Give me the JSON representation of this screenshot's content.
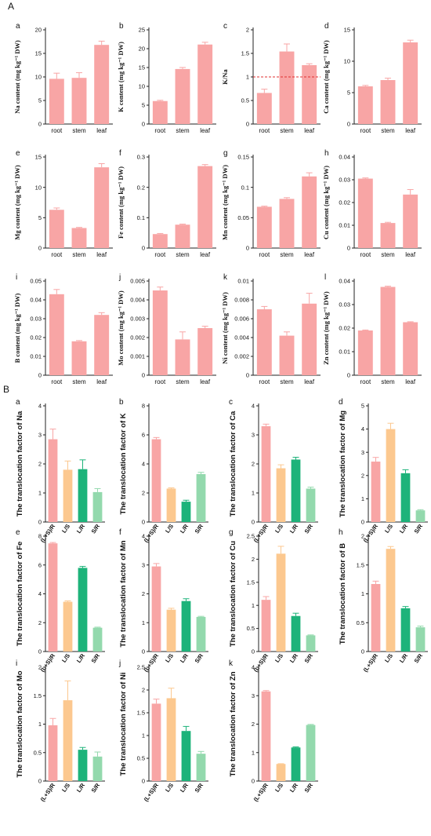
{
  "sections": {
    "a": "A",
    "b": "B"
  },
  "colors": {
    "panel_a_bar": "#f8a5a5",
    "panel_b_bars": [
      "#f8a5a5",
      "#fcc88f",
      "#1db37a",
      "#93d9ad"
    ],
    "ref_line": "#e03030"
  },
  "chart_data": [
    {
      "section": "A",
      "letter": "a",
      "type": "bar",
      "ylabel": "Na content (mg kg⁻¹ DW)",
      "categories": [
        "root",
        "stem",
        "leaf"
      ],
      "values": [
        9.6,
        9.8,
        16.8
      ],
      "errors": [
        1.2,
        1.1,
        0.8
      ],
      "ylim": [
        0,
        20
      ],
      "yticks": [
        0,
        5,
        10,
        15,
        20
      ]
    },
    {
      "section": "A",
      "letter": "b",
      "type": "bar",
      "ylabel": "K content (mg kg⁻¹ DW)",
      "categories": [
        "root",
        "stem",
        "leaf"
      ],
      "values": [
        6.1,
        14.6,
        21.1
      ],
      "errors": [
        0.2,
        0.4,
        0.6
      ],
      "ylim": [
        0,
        25
      ],
      "yticks": [
        0,
        5,
        10,
        15,
        20,
        25
      ]
    },
    {
      "section": "A",
      "letter": "c",
      "type": "bar",
      "ylabel": "K/Na",
      "categories": [
        "root",
        "stem",
        "leaf"
      ],
      "values": [
        0.66,
        1.54,
        1.25
      ],
      "errors": [
        0.08,
        0.16,
        0.03
      ],
      "ylim": [
        0,
        2.0
      ],
      "yticks": [
        0,
        0.5,
        1.0,
        1.5,
        2.0
      ],
      "reference_line": 1.0
    },
    {
      "section": "A",
      "letter": "d",
      "type": "bar",
      "ylabel": "Ca content (mg kg⁻¹ DW)",
      "categories": [
        "root",
        "stem",
        "leaf"
      ],
      "values": [
        6.0,
        7.0,
        13.0
      ],
      "errors": [
        0.15,
        0.3,
        0.35
      ],
      "ylim": [
        0,
        15
      ],
      "yticks": [
        0,
        5,
        10,
        15
      ]
    },
    {
      "section": "A",
      "letter": "e",
      "type": "bar",
      "ylabel": "Mg content (mg kg⁻¹ DW)",
      "categories": [
        "root",
        "stem",
        "leaf"
      ],
      "values": [
        6.3,
        3.3,
        13.3
      ],
      "errors": [
        0.3,
        0.1,
        0.6
      ],
      "ylim": [
        0,
        15
      ],
      "yticks": [
        0,
        5,
        10,
        15
      ]
    },
    {
      "section": "A",
      "letter": "f",
      "type": "bar",
      "ylabel": "Fe content (mg kg⁻¹ DW)",
      "categories": [
        "root",
        "stem",
        "leaf"
      ],
      "values": [
        0.046,
        0.077,
        0.27
      ],
      "errors": [
        0.002,
        0.002,
        0.005
      ],
      "ylim": [
        0,
        0.3
      ],
      "yticks": [
        0,
        0.1,
        0.2,
        0.3
      ]
    },
    {
      "section": "A",
      "letter": "g",
      "type": "bar",
      "ylabel": "Mn content (mg kg⁻¹ DW)",
      "categories": [
        "root",
        "stem",
        "leaf"
      ],
      "values": [
        0.068,
        0.081,
        0.118
      ],
      "errors": [
        0.001,
        0.002,
        0.006
      ],
      "ylim": [
        0,
        0.15
      ],
      "yticks": [
        0,
        0.05,
        0.1,
        0.15
      ]
    },
    {
      "section": "A",
      "letter": "h",
      "type": "bar",
      "ylabel": "Cu content (mg kg⁻¹ DW)",
      "categories": [
        "root",
        "stem",
        "leaf"
      ],
      "values": [
        0.0305,
        0.011,
        0.0235
      ],
      "errors": [
        0.0003,
        0.0003,
        0.0022
      ],
      "ylim": [
        0,
        0.04
      ],
      "yticks": [
        0,
        0.01,
        0.02,
        0.03,
        0.04
      ]
    },
    {
      "section": "A",
      "letter": "i",
      "type": "bar",
      "ylabel": "B content (mg kg⁻¹ DW)",
      "categories": [
        "root",
        "stem",
        "leaf"
      ],
      "values": [
        0.043,
        0.018,
        0.032
      ],
      "errors": [
        0.0025,
        0.0004,
        0.0012
      ],
      "ylim": [
        0,
        0.05
      ],
      "yticks": [
        0,
        0.01,
        0.02,
        0.03,
        0.04,
        0.05
      ]
    },
    {
      "section": "A",
      "letter": "j",
      "type": "bar",
      "ylabel": "Mo content (mg kg⁻¹ DW)",
      "categories": [
        "root",
        "stem",
        "leaf"
      ],
      "values": [
        0.0045,
        0.0019,
        0.0025
      ],
      "errors": [
        0.00018,
        0.0004,
        0.0001
      ],
      "ylim": [
        0,
        0.005
      ],
      "yticks": [
        0,
        0.001,
        0.002,
        0.003,
        0.004,
        0.005
      ]
    },
    {
      "section": "A",
      "letter": "k",
      "type": "bar",
      "ylabel": "Ni content (mg kg⁻¹ DW)",
      "categories": [
        "root",
        "stem",
        "leaf"
      ],
      "values": [
        0.007,
        0.0042,
        0.0076
      ],
      "errors": [
        0.0003,
        0.0004,
        0.0011
      ],
      "ylim": [
        0,
        0.01
      ],
      "yticks": [
        0,
        0.002,
        0.004,
        0.006,
        0.008,
        0.01
      ]
    },
    {
      "section": "A",
      "letter": "l",
      "type": "bar",
      "ylabel": "Zn content (mg kg⁻¹ DW)",
      "categories": [
        "root",
        "stem",
        "leaf"
      ],
      "values": [
        0.019,
        0.0375,
        0.0225
      ],
      "errors": [
        0.0002,
        0.0003,
        0.0002
      ],
      "ylim": [
        0,
        0.04
      ],
      "yticks": [
        0,
        0.01,
        0.02,
        0.03,
        0.04
      ]
    },
    {
      "section": "B",
      "letter": "a",
      "type": "bar",
      "ylabel": "The translocation factor of Na",
      "categories": [
        "(L+S)/R",
        "L/S",
        "L/R",
        "S/R"
      ],
      "values": [
        2.85,
        1.8,
        1.82,
        1.03
      ],
      "errors": [
        0.35,
        0.3,
        0.32,
        0.12
      ],
      "ylim": [
        0,
        4
      ],
      "yticks": [
        0,
        1,
        2,
        3,
        4
      ]
    },
    {
      "section": "B",
      "letter": "b",
      "type": "bar",
      "ylabel": "The translocation factor of K",
      "categories": [
        "(L+S)/R",
        "L/S",
        "L/R",
        "S/R"
      ],
      "values": [
        5.7,
        2.3,
        1.4,
        3.3
      ],
      "errors": [
        0.12,
        0.05,
        0.1,
        0.12
      ],
      "ylim": [
        0,
        8
      ],
      "yticks": [
        0,
        2,
        4,
        6,
        8
      ]
    },
    {
      "section": "B",
      "letter": "c",
      "type": "bar",
      "ylabel": "The translocation factor of Ca",
      "categories": [
        "(L+S)/R",
        "L/S",
        "L/R",
        "S/R"
      ],
      "values": [
        3.3,
        1.85,
        2.15,
        1.15
      ],
      "errors": [
        0.07,
        0.12,
        0.08,
        0.05
      ],
      "ylim": [
        0,
        4
      ],
      "yticks": [
        0,
        1,
        2,
        3,
        4
      ]
    },
    {
      "section": "B",
      "letter": "d",
      "type": "bar",
      "ylabel": "The translocation factor of Mg",
      "categories": [
        "(L+S)/R",
        "L/S",
        "L/R",
        "S/R"
      ],
      "values": [
        2.6,
        4.0,
        2.1,
        0.5
      ],
      "errors": [
        0.18,
        0.25,
        0.15,
        0.03
      ],
      "ylim": [
        0,
        5
      ],
      "yticks": [
        0,
        1,
        2,
        3,
        4,
        5
      ]
    },
    {
      "section": "B",
      "letter": "e",
      "type": "bar",
      "ylabel": "The translocation factor of Fe",
      "categories": [
        "(L+S)/R",
        "L/S",
        "L/R",
        "S/R"
      ],
      "values": [
        7.5,
        3.45,
        5.8,
        1.65
      ],
      "errors": [
        0.06,
        0.06,
        0.1,
        0.04
      ],
      "ylim": [
        0,
        8
      ],
      "yticks": [
        0,
        2,
        4,
        6,
        8
      ]
    },
    {
      "section": "B",
      "letter": "f",
      "type": "bar",
      "ylabel": "The translocation factor of Mn",
      "categories": [
        "(L+S)/R",
        "L/S",
        "L/R",
        "S/R"
      ],
      "values": [
        2.95,
        1.45,
        1.75,
        1.2
      ],
      "errors": [
        0.1,
        0.05,
        0.08,
        0.02
      ],
      "ylim": [
        0,
        4
      ],
      "yticks": [
        0,
        1,
        2,
        3,
        4
      ]
    },
    {
      "section": "B",
      "letter": "g",
      "type": "bar",
      "ylabel": "The translocation factor of Cu",
      "categories": [
        "(L+S)/R",
        "L/S",
        "L/R",
        "S/R"
      ],
      "values": [
        1.12,
        2.12,
        0.77,
        0.35
      ],
      "errors": [
        0.07,
        0.16,
        0.06,
        0.01
      ],
      "ylim": [
        0,
        2.5
      ],
      "yticks": [
        0,
        0.5,
        1.0,
        1.5,
        2.0,
        2.5
      ]
    },
    {
      "section": "B",
      "letter": "h",
      "type": "bar",
      "ylabel": "The translocation factor of B",
      "categories": [
        "(L+S)/R",
        "L/S",
        "L/R",
        "S/R"
      ],
      "values": [
        1.17,
        1.78,
        0.75,
        0.42
      ],
      "errors": [
        0.05,
        0.04,
        0.03,
        0.02
      ],
      "ylim": [
        0,
        2.0
      ],
      "yticks": [
        0,
        0.5,
        1.0,
        1.5,
        2.0
      ]
    },
    {
      "section": "B",
      "letter": "i",
      "type": "bar",
      "ylabel": "The translocation factor of Mo",
      "categories": [
        "(L+S)/R",
        "L/S",
        "L/R",
        "S/R"
      ],
      "values": [
        0.98,
        1.42,
        0.55,
        0.43
      ],
      "errors": [
        0.12,
        0.34,
        0.04,
        0.08
      ],
      "ylim": [
        0,
        2.0
      ],
      "yticks": [
        0,
        0.5,
        1.0,
        1.5,
        2.0
      ]
    },
    {
      "section": "B",
      "letter": "j",
      "type": "bar",
      "ylabel": "The translocation factor of Ni",
      "categories": [
        "(L+S)/R",
        "L/S",
        "L/R",
        "S/R"
      ],
      "values": [
        1.7,
        1.82,
        1.1,
        0.6
      ],
      "errors": [
        0.1,
        0.22,
        0.1,
        0.05
      ],
      "ylim": [
        0,
        2.5
      ],
      "yticks": [
        0,
        0.5,
        1.0,
        1.5,
        2.0,
        2.5
      ]
    },
    {
      "section": "B",
      "letter": "k",
      "type": "bar",
      "ylabel": "The translocation factor of Zn",
      "categories": [
        "(L+S)/R",
        "L/S",
        "L/R",
        "S/R"
      ],
      "values": [
        3.15,
        0.6,
        1.18,
        1.97
      ],
      "errors": [
        0.03,
        0.01,
        0.02,
        0.02
      ],
      "ylim": [
        0,
        4
      ],
      "yticks": [
        0,
        1,
        2,
        3,
        4
      ]
    }
  ]
}
